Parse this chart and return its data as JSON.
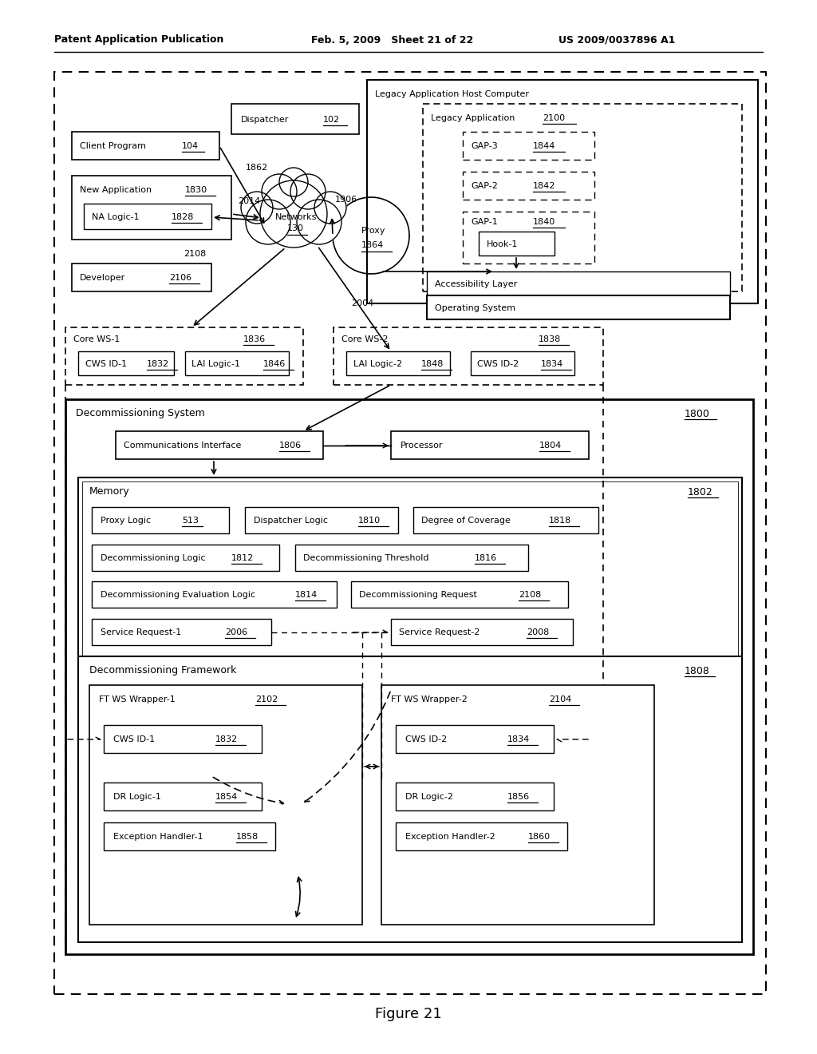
{
  "header_left": "Patent Application Publication",
  "header_mid": "Feb. 5, 2009   Sheet 21 of 22",
  "header_right": "US 2009/0037896 A1",
  "figure_label": "Figure 21",
  "bg_color": "#ffffff"
}
